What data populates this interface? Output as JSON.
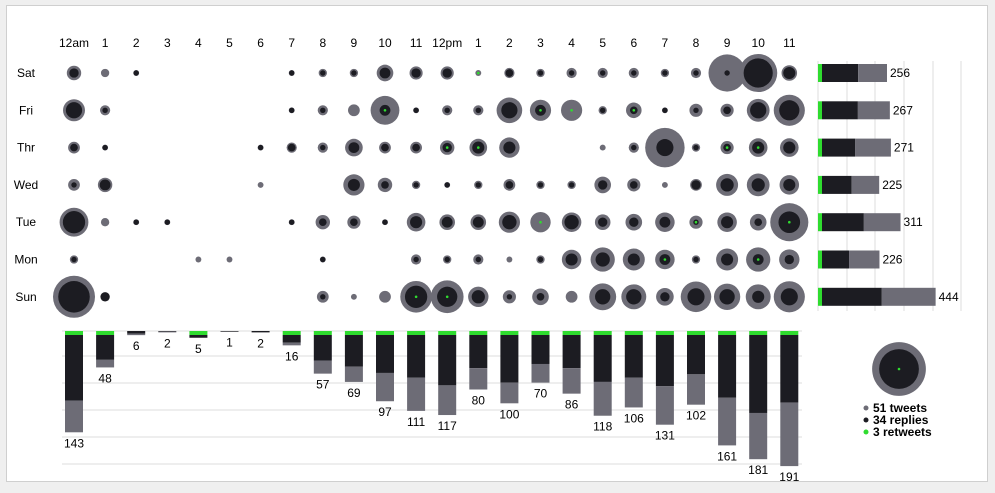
{
  "colors": {
    "tweets": "#6d6c76",
    "replies": "#1c1c22",
    "retweets": "#2fdc2f",
    "grid": "#dddddd",
    "text": "#000000"
  },
  "chart_data": {
    "type": "bubble-matrix",
    "hours": [
      "12am",
      "1",
      "2",
      "3",
      "4",
      "5",
      "6",
      "7",
      "8",
      "9",
      "10",
      "11",
      "12pm",
      "1",
      "2",
      "3",
      "4",
      "5",
      "6",
      "7",
      "8",
      "9",
      "10",
      "11"
    ],
    "days": [
      "Sat",
      "Fri",
      "Thr",
      "Wed",
      "Tue",
      "Mon",
      "Sun"
    ],
    "series_names": [
      "tweets",
      "replies",
      "retweets"
    ],
    "matrix": {
      "tweets": [
        [
          6,
          2,
          1,
          0,
          0,
          0,
          0,
          1,
          2,
          2,
          8,
          5,
          5,
          1,
          3,
          2,
          3,
          3,
          3,
          2,
          3,
          40,
          42,
          7
        ],
        [
          14,
          3,
          0,
          0,
          0,
          0,
          0,
          1,
          3,
          4,
          24,
          1,
          3,
          3,
          19,
          13,
          13,
          2,
          7,
          1,
          5,
          5,
          15,
          28
        ],
        [
          4,
          1,
          0,
          0,
          0,
          0,
          1,
          3,
          3,
          9,
          4,
          4,
          6,
          9,
          12,
          0,
          0,
          1,
          3,
          45,
          2,
          5,
          10,
          10
        ],
        [
          4,
          6,
          0,
          0,
          0,
          0,
          1,
          0,
          0,
          13,
          6,
          2,
          1,
          2,
          4,
          2,
          2,
          8,
          5,
          1,
          4,
          14,
          15,
          11
        ],
        [
          24,
          2,
          1,
          1,
          0,
          0,
          0,
          1,
          6,
          5,
          1,
          10,
          7,
          7,
          13,
          12,
          11,
          7,
          8,
          11,
          5,
          11,
          8,
          42
        ],
        [
          2,
          0,
          0,
          0,
          1,
          1,
          0,
          0,
          1,
          0,
          0,
          3,
          2,
          3,
          1,
          2,
          11,
          17,
          14,
          11,
          2,
          14,
          17,
          12
        ],
        [
          51,
          2,
          0,
          0,
          0,
          0,
          0,
          0,
          4,
          1,
          4,
          29,
          31,
          12,
          5,
          8,
          4,
          21,
          18,
          9,
          27,
          20,
          18,
          28
        ]
      ],
      "replies": [
        [
          3,
          0,
          1,
          0,
          0,
          0,
          0,
          1,
          1,
          1,
          4,
          3,
          3,
          0,
          2,
          1,
          1,
          1,
          1,
          1,
          1,
          1,
          29,
          5
        ],
        [
          9,
          1,
          0,
          0,
          0,
          0,
          0,
          1,
          1,
          0,
          4,
          1,
          1,
          1,
          9,
          4,
          0,
          1,
          2,
          1,
          1,
          2,
          9,
          14
        ],
        [
          2,
          1,
          0,
          0,
          0,
          0,
          1,
          2,
          1,
          4,
          2,
          2,
          3,
          5,
          5,
          0,
          0,
          0,
          1,
          10,
          1,
          2,
          5,
          5
        ],
        [
          1,
          4,
          0,
          0,
          0,
          0,
          0,
          0,
          0,
          5,
          2,
          1,
          1,
          1,
          2,
          1,
          1,
          3,
          2,
          0,
          3,
          6,
          6,
          5
        ],
        [
          17,
          0,
          1,
          1,
          0,
          0,
          0,
          1,
          2,
          2,
          1,
          5,
          4,
          4,
          7,
          0,
          7,
          3,
          3,
          4,
          1,
          5,
          2,
          16
        ],
        [
          1,
          0,
          0,
          0,
          0,
          0,
          0,
          0,
          1,
          0,
          0,
          1,
          1,
          1,
          0,
          1,
          5,
          7,
          5,
          4,
          1,
          5,
          4,
          3
        ],
        [
          34,
          3,
          0,
          0,
          0,
          0,
          0,
          0,
          1,
          0,
          0,
          17,
          14,
          6,
          1,
          2,
          0,
          8,
          8,
          3,
          10,
          8,
          5,
          10
        ]
      ],
      "retweets": [
        [
          0,
          0,
          0,
          0,
          0,
          0,
          0,
          0,
          0,
          0,
          0,
          0,
          0,
          1,
          0,
          0,
          0,
          0,
          0,
          0,
          0,
          0,
          0,
          0
        ],
        [
          0,
          0,
          0,
          0,
          0,
          0,
          0,
          0,
          0,
          0,
          1,
          0,
          0,
          0,
          0,
          1,
          1,
          0,
          1,
          0,
          0,
          0,
          0,
          0
        ],
        [
          0,
          0,
          0,
          0,
          0,
          0,
          0,
          0,
          0,
          0,
          0,
          0,
          1,
          1,
          0,
          0,
          0,
          0,
          0,
          0,
          0,
          1,
          1,
          0
        ],
        [
          0,
          0,
          0,
          0,
          0,
          0,
          0,
          0,
          0,
          0,
          0,
          0,
          0,
          0,
          0,
          0,
          0,
          0,
          0,
          0,
          0,
          0,
          0,
          0
        ],
        [
          0,
          0,
          0,
          0,
          0,
          0,
          0,
          0,
          0,
          0,
          0,
          0,
          0,
          0,
          0,
          1,
          0,
          0,
          0,
          0,
          1,
          0,
          0,
          1
        ],
        [
          0,
          0,
          0,
          0,
          0,
          0,
          0,
          0,
          0,
          0,
          0,
          0,
          0,
          0,
          0,
          0,
          0,
          0,
          0,
          1,
          0,
          0,
          1,
          0
        ],
        [
          0,
          0,
          0,
          0,
          0,
          0,
          0,
          0,
          0,
          0,
          0,
          1,
          1,
          0,
          0,
          0,
          0,
          0,
          0,
          0,
          0,
          0,
          0,
          0
        ]
      ]
    },
    "hour_totals": [
      143,
      48,
      6,
      2,
      5,
      1,
      2,
      16,
      57,
      69,
      97,
      111,
      117,
      80,
      100,
      70,
      86,
      118,
      106,
      131,
      102,
      161,
      181,
      191
    ],
    "hour_series": {
      "tweets": [
        46,
        11,
        2,
        1,
        0,
        0,
        0,
        4,
        19,
        22,
        41,
        48,
        43,
        31,
        30,
        27,
        37,
        49,
        43,
        56,
        44,
        69,
        67,
        92
      ],
      "replies": [
        95,
        36,
        4,
        1,
        4,
        1,
        2,
        11,
        37,
        46,
        55,
        62,
        73,
        48,
        69,
        42,
        48,
        68,
        62,
        74,
        57,
        91,
        113,
        98
      ],
      "retweets": [
        2,
        1,
        0,
        0,
        1,
        0,
        0,
        1,
        1,
        1,
        1,
        1,
        1,
        1,
        1,
        1,
        1,
        1,
        1,
        1,
        1,
        1,
        1,
        1
      ]
    },
    "day_totals": [
      256,
      267,
      271,
      225,
      311,
      226,
      444
    ],
    "day_series": {
      "tweets": [
        111,
        123,
        137,
        106,
        141,
        117,
        207
      ],
      "replies": [
        139,
        138,
        128,
        114,
        161,
        104,
        230
      ],
      "retweets": [
        6,
        6,
        6,
        5,
        9,
        5,
        7
      ]
    },
    "legend": {
      "tweets_count": 51,
      "replies_count": 34,
      "retweets_count": 3,
      "tweets_label": "51 tweets",
      "replies_label": "34 replies",
      "retweets_label": "3 retweets"
    }
  }
}
